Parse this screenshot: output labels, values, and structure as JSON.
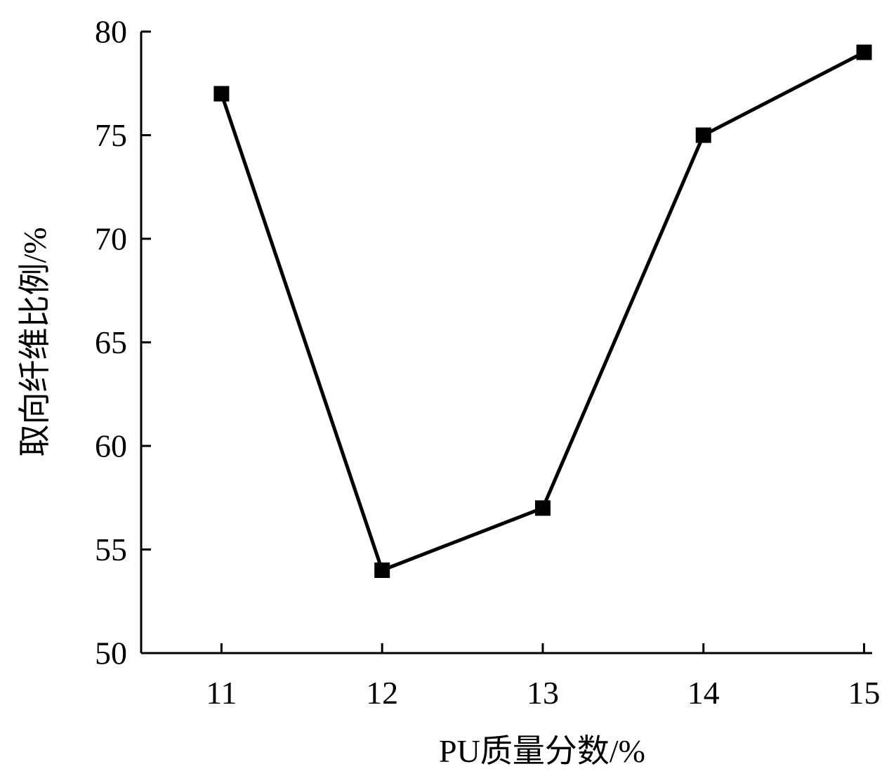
{
  "chart_data": {
    "type": "line",
    "title": "",
    "xlabel": "PU质量分数/%",
    "ylabel": "取向纤维比例/%",
    "x": [
      11,
      12,
      13,
      14,
      15
    ],
    "x_ticks": [
      "11",
      "12",
      "13",
      "14",
      "15"
    ],
    "y_ticks": [
      "50",
      "55",
      "60",
      "65",
      "70",
      "75",
      "80"
    ],
    "xlim": [
      10.5,
      15.05
    ],
    "ylim": [
      50,
      80
    ],
    "grid": false,
    "legend": "none",
    "series": [
      {
        "values": [
          77,
          54,
          57,
          75,
          79
        ],
        "marker": "square",
        "color": "#000000"
      }
    ]
  }
}
